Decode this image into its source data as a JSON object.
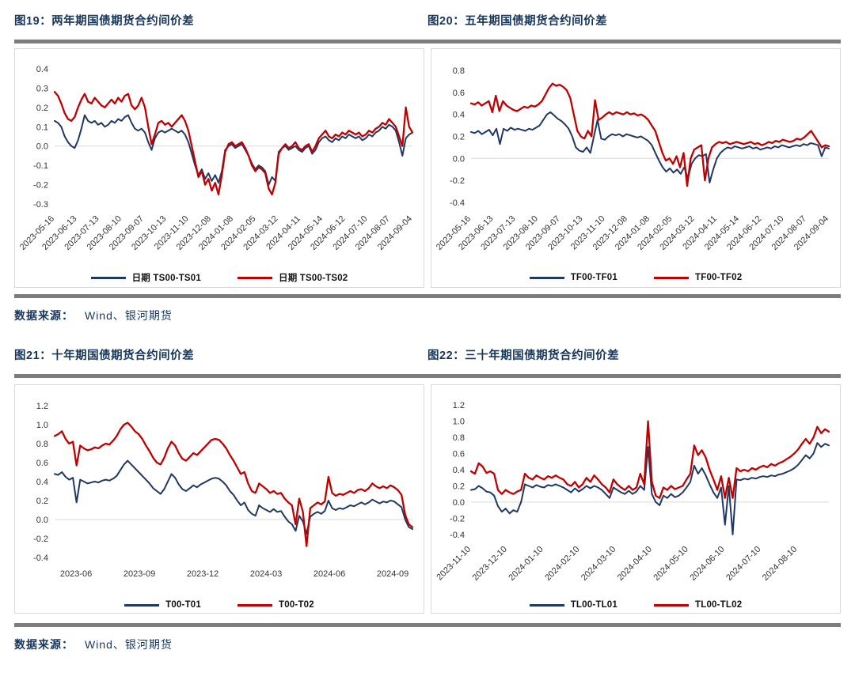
{
  "colors": {
    "navy_text": "#17365D",
    "blue_line": "#1F3864",
    "red_line": "#C00000",
    "divider_gray": "#7D7D7D",
    "box_border": "#D9D9D9",
    "zero_gridline": "#D9D9D9",
    "tick_text": "#333333"
  },
  "sections": [
    {
      "titles": [
        "图19：两年期国债期货合约间价差",
        "图20：五年期国债期货合约间价差"
      ],
      "source_label": "数据来源：",
      "source_value": "Wind、银河期货"
    },
    {
      "titles": [
        "图21：十年期国债期货合约间价差",
        "图22：三十年期国债期货合约间价差"
      ],
      "source_label": "数据来源：",
      "source_value": "Wind、银河期货"
    }
  ],
  "chart_data": [
    {
      "type": "line",
      "title": "图19：两年期国债期货合约间价差",
      "ylim": [
        -0.32,
        0.42
      ],
      "y_ticks": [
        0.4,
        0.3,
        0.2,
        0.1,
        0.0,
        -0.1,
        -0.2,
        -0.3
      ],
      "grid": "zero-line-only",
      "legend_position": "bottom",
      "x_tick_rotate": true,
      "x_start": 0,
      "x_step": 0.0625,
      "margins": {
        "l": 50,
        "r": 14,
        "t": 20,
        "b": 66
      },
      "x_tick_labels": [
        "2023-05-16",
        "2023-06-13",
        "2023-07-13",
        "2023-08-10",
        "2023-09-07",
        "2023-10-13",
        "2023-11-10",
        "2023-12-08",
        "2024-01-08",
        "2024-02-05",
        "2024-03-12",
        "2024-04-11",
        "2024-05-14",
        "2024-06-12",
        "2024-07-10",
        "2024-08-07",
        "2024-09-04"
      ],
      "series": [
        {
          "name": "日期 TS00-TS01",
          "color": "#1F3864",
          "width": 2,
          "values": [
            0.13,
            0.12,
            0.1,
            0.05,
            0.02,
            0.0,
            -0.01,
            0.03,
            0.09,
            0.16,
            0.13,
            0.12,
            0.13,
            0.11,
            0.12,
            0.1,
            0.11,
            0.13,
            0.12,
            0.14,
            0.13,
            0.15,
            0.16,
            0.12,
            0.09,
            0.08,
            0.09,
            0.07,
            0.02,
            -0.02,
            0.04,
            0.07,
            0.08,
            0.07,
            0.08,
            0.09,
            0.08,
            0.07,
            0.08,
            0.06,
            0.02,
            -0.04,
            -0.1,
            -0.15,
            -0.12,
            -0.17,
            -0.14,
            -0.18,
            -0.15,
            -0.19,
            -0.13,
            -0.02,
            0.0,
            0.01,
            -0.01,
            0.0,
            0.01,
            -0.02,
            -0.05,
            -0.09,
            -0.12,
            -0.1,
            -0.11,
            -0.13,
            -0.2,
            -0.16,
            -0.18,
            -0.03,
            -0.01,
            0.0,
            -0.02,
            -0.01,
            0.0,
            -0.02,
            -0.03,
            -0.01,
            0.0,
            -0.04,
            -0.02,
            0.02,
            0.04,
            0.05,
            0.03,
            0.02,
            0.04,
            0.03,
            0.05,
            0.04,
            0.06,
            0.05,
            0.04,
            0.05,
            0.03,
            0.04,
            0.06,
            0.05,
            0.07,
            0.08,
            0.1,
            0.09,
            0.11,
            0.1,
            0.08,
            0.02,
            -0.05,
            0.04,
            0.06,
            0.07
          ]
        },
        {
          "name": "日期 TS00-TS02",
          "color": "#C00000",
          "width": 2.3,
          "values": [
            0.28,
            0.26,
            0.22,
            0.17,
            0.14,
            0.13,
            0.15,
            0.2,
            0.24,
            0.27,
            0.23,
            0.22,
            0.25,
            0.23,
            0.21,
            0.2,
            0.22,
            0.24,
            0.22,
            0.25,
            0.23,
            0.26,
            0.27,
            0.21,
            0.19,
            0.21,
            0.25,
            0.2,
            0.1,
            0.01,
            0.06,
            0.12,
            0.13,
            0.11,
            0.12,
            0.1,
            0.12,
            0.14,
            0.16,
            0.13,
            0.08,
            0.0,
            -0.08,
            -0.16,
            -0.13,
            -0.2,
            -0.17,
            -0.23,
            -0.19,
            -0.25,
            -0.15,
            -0.03,
            0.01,
            0.02,
            0.0,
            0.01,
            0.02,
            -0.01,
            -0.05,
            -0.1,
            -0.13,
            -0.11,
            -0.12,
            -0.14,
            -0.22,
            -0.25,
            -0.19,
            -0.04,
            -0.01,
            0.01,
            -0.01,
            0.0,
            0.02,
            -0.01,
            -0.02,
            0.0,
            0.01,
            -0.03,
            0.0,
            0.04,
            0.06,
            0.08,
            0.05,
            0.04,
            0.06,
            0.05,
            0.07,
            0.06,
            0.08,
            0.07,
            0.06,
            0.07,
            0.05,
            0.06,
            0.08,
            0.07,
            0.09,
            0.1,
            0.12,
            0.11,
            0.14,
            0.12,
            0.1,
            0.05,
            0.0,
            0.2,
            0.1,
            0.07
          ]
        }
      ]
    },
    {
      "type": "line",
      "title": "图20：五年期国债期货合约间价差",
      "ylim": [
        -0.45,
        0.85
      ],
      "y_ticks": [
        0.8,
        0.6,
        0.4,
        0.2,
        0.0,
        -0.2,
        -0.4
      ],
      "grid": "zero-line-only",
      "legend_position": "bottom",
      "x_tick_rotate": true,
      "x_start": 0,
      "x_step": 0.0625,
      "margins": {
        "l": 50,
        "r": 14,
        "t": 20,
        "b": 66
      },
      "x_tick_labels": [
        "2023-05-16",
        "2023-06-13",
        "2023-07-13",
        "2023-08-10",
        "2023-09-07",
        "2023-10-13",
        "2023-11-10",
        "2023-12-08",
        "2024-01-08",
        "2024-02-05",
        "2024-03-12",
        "2024-04-11",
        "2024-05-14",
        "2024-06-12",
        "2024-07-10",
        "2024-08-07",
        "2024-09-04"
      ],
      "series": [
        {
          "name": "TF00-TF01",
          "color": "#1F3864",
          "width": 2,
          "values": [
            0.24,
            0.23,
            0.25,
            0.22,
            0.24,
            0.26,
            0.21,
            0.27,
            0.13,
            0.27,
            0.25,
            0.28,
            0.26,
            0.27,
            0.26,
            0.25,
            0.27,
            0.26,
            0.28,
            0.3,
            0.35,
            0.4,
            0.42,
            0.39,
            0.36,
            0.34,
            0.31,
            0.27,
            0.2,
            0.1,
            0.07,
            0.06,
            0.1,
            0.05,
            0.2,
            0.35,
            0.18,
            0.17,
            0.2,
            0.22,
            0.21,
            0.22,
            0.2,
            0.22,
            0.21,
            0.2,
            0.19,
            0.2,
            0.18,
            0.16,
            0.12,
            0.05,
            -0.02,
            -0.08,
            -0.12,
            -0.09,
            -0.13,
            -0.1,
            -0.14,
            -0.08,
            -0.18,
            -0.05,
            0.0,
            0.03,
            0.02,
            0.04,
            -0.22,
            -0.1,
            0.0,
            0.05,
            0.08,
            0.1,
            0.09,
            0.11,
            0.1,
            0.09,
            0.1,
            0.11,
            0.09,
            0.1,
            0.08,
            0.09,
            0.1,
            0.09,
            0.11,
            0.1,
            0.12,
            0.11,
            0.1,
            0.11,
            0.12,
            0.11,
            0.13,
            0.12,
            0.14,
            0.13,
            0.12,
            0.02,
            0.1,
            0.09
          ]
        },
        {
          "name": "TF00-TF02",
          "color": "#C00000",
          "width": 2.3,
          "values": [
            0.5,
            0.49,
            0.51,
            0.48,
            0.5,
            0.52,
            0.42,
            0.57,
            0.43,
            0.52,
            0.48,
            0.46,
            0.44,
            0.43,
            0.45,
            0.47,
            0.46,
            0.48,
            0.47,
            0.49,
            0.52,
            0.58,
            0.64,
            0.68,
            0.66,
            0.67,
            0.65,
            0.62,
            0.55,
            0.4,
            0.25,
            0.2,
            0.18,
            0.25,
            0.2,
            0.53,
            0.35,
            0.37,
            0.4,
            0.42,
            0.4,
            0.42,
            0.41,
            0.4,
            0.42,
            0.4,
            0.41,
            0.39,
            0.4,
            0.38,
            0.35,
            0.3,
            0.25,
            0.15,
            0.05,
            -0.02,
            0.0,
            -0.05,
            0.02,
            -0.08,
            0.05,
            -0.25,
            0.0,
            0.08,
            0.1,
            0.12,
            -0.2,
            0.0,
            0.1,
            0.13,
            0.15,
            0.14,
            0.15,
            0.13,
            0.14,
            0.15,
            0.14,
            0.13,
            0.14,
            0.15,
            0.13,
            0.14,
            0.12,
            0.13,
            0.15,
            0.14,
            0.16,
            0.15,
            0.17,
            0.16,
            0.15,
            0.16,
            0.18,
            0.17,
            0.19,
            0.22,
            0.25,
            0.2,
            0.15,
            0.1,
            0.12,
            0.11
          ]
        }
      ]
    },
    {
      "type": "line",
      "title": "图21：十年期国债期货合约间价差",
      "ylim": [
        -0.45,
        1.25
      ],
      "y_ticks": [
        1.2,
        1.0,
        0.8,
        0.6,
        0.4,
        0.2,
        0.0,
        -0.2,
        -0.4
      ],
      "grid": "zero-line-only",
      "legend_position": "bottom",
      "x_tick_rotate": false,
      "x_start": 0.06,
      "x_step": 0.177,
      "margins": {
        "l": 50,
        "r": 14,
        "t": 20,
        "b": 34
      },
      "x_tick_labels": [
        "2023-06",
        "2023-09",
        "2023-12",
        "2024-03",
        "2024-06",
        "2024-09"
      ],
      "series": [
        {
          "name": "T00-T01",
          "color": "#1F3864",
          "width": 2,
          "values": [
            0.48,
            0.47,
            0.5,
            0.45,
            0.42,
            0.44,
            0.18,
            0.42,
            0.4,
            0.38,
            0.39,
            0.4,
            0.39,
            0.41,
            0.42,
            0.41,
            0.43,
            0.46,
            0.52,
            0.58,
            0.62,
            0.58,
            0.54,
            0.5,
            0.46,
            0.42,
            0.38,
            0.33,
            0.3,
            0.27,
            0.32,
            0.4,
            0.48,
            0.44,
            0.37,
            0.32,
            0.3,
            0.33,
            0.36,
            0.34,
            0.37,
            0.39,
            0.41,
            0.43,
            0.44,
            0.43,
            0.4,
            0.36,
            0.3,
            0.26,
            0.2,
            0.15,
            0.18,
            0.1,
            0.06,
            0.04,
            0.15,
            0.12,
            0.1,
            0.08,
            0.11,
            0.08,
            0.09,
            0.03,
            -0.02,
            -0.05,
            -0.12,
            0.04,
            -0.02,
            -0.15,
            0.03,
            0.06,
            0.08,
            0.06,
            0.09,
            0.2,
            0.12,
            0.1,
            0.12,
            0.11,
            0.13,
            0.15,
            0.14,
            0.16,
            0.18,
            0.16,
            0.18,
            0.21,
            0.19,
            0.17,
            0.19,
            0.18,
            0.2,
            0.19,
            0.16,
            0.13,
            0.0,
            -0.08,
            -0.1
          ]
        },
        {
          "name": "T00-T02",
          "color": "#C00000",
          "width": 2.3,
          "values": [
            0.88,
            0.9,
            0.93,
            0.85,
            0.8,
            0.82,
            0.57,
            0.78,
            0.75,
            0.73,
            0.74,
            0.76,
            0.75,
            0.78,
            0.8,
            0.79,
            0.83,
            0.88,
            0.95,
            1.0,
            1.02,
            0.98,
            0.93,
            0.9,
            0.85,
            0.78,
            0.72,
            0.65,
            0.6,
            0.58,
            0.65,
            0.75,
            0.82,
            0.78,
            0.7,
            0.64,
            0.62,
            0.66,
            0.7,
            0.68,
            0.72,
            0.76,
            0.8,
            0.84,
            0.85,
            0.84,
            0.8,
            0.75,
            0.68,
            0.62,
            0.55,
            0.48,
            0.5,
            0.38,
            0.3,
            0.28,
            0.38,
            0.35,
            0.32,
            0.28,
            0.3,
            0.27,
            0.28,
            0.22,
            0.18,
            0.15,
            -0.05,
            0.22,
            0.08,
            -0.28,
            0.12,
            0.15,
            0.18,
            0.16,
            0.19,
            0.45,
            0.28,
            0.25,
            0.27,
            0.26,
            0.28,
            0.3,
            0.28,
            0.31,
            0.32,
            0.3,
            0.33,
            0.38,
            0.35,
            0.33,
            0.35,
            0.33,
            0.36,
            0.34,
            0.31,
            0.26,
            0.05,
            -0.05,
            -0.08
          ]
        }
      ]
    },
    {
      "type": "line",
      "title": "图22：三十年期国债期货合约间价差",
      "ylim": [
        -0.45,
        1.25
      ],
      "y_ticks": [
        1.2,
        1.0,
        0.8,
        0.6,
        0.4,
        0.2,
        0.0,
        -0.2,
        -0.4
      ],
      "grid": "zero-line-only",
      "legend_position": "bottom",
      "x_tick_rotate": true,
      "x_start": 0,
      "x_step": 0.1013,
      "margins": {
        "l": 50,
        "r": 14,
        "t": 20,
        "b": 64
      },
      "x_tick_labels": [
        "2023-11-10",
        "2023-12-10",
        "2024-01-10",
        "2024-02-10",
        "2024-03-10",
        "2024-04-10",
        "2024-05-10",
        "2024-06-10",
        "2024-07-10",
        "2024-08-10"
      ],
      "series": [
        {
          "name": "TL00-TL01",
          "color": "#1F3864",
          "width": 2,
          "values": [
            0.15,
            0.16,
            0.2,
            0.17,
            0.13,
            0.12,
            0.08,
            -0.05,
            -0.12,
            -0.08,
            -0.14,
            -0.1,
            -0.12,
            0.0,
            0.22,
            0.2,
            0.18,
            0.21,
            0.19,
            0.18,
            0.21,
            0.2,
            0.22,
            0.2,
            0.18,
            0.15,
            0.12,
            0.17,
            0.13,
            0.16,
            0.2,
            0.17,
            0.2,
            0.18,
            0.15,
            0.1,
            0.05,
            0.18,
            0.15,
            0.12,
            0.1,
            0.14,
            0.1,
            0.13,
            0.2,
            0.15,
            0.68,
            0.1,
            0.0,
            -0.04,
            0.08,
            0.05,
            0.1,
            0.06,
            0.08,
            0.12,
            0.18,
            0.25,
            0.45,
            0.35,
            0.42,
            0.33,
            0.22,
            0.12,
            0.05,
            0.18,
            -0.28,
            0.2,
            -0.4,
            0.28,
            0.27,
            0.29,
            0.28,
            0.3,
            0.29,
            0.31,
            0.32,
            0.31,
            0.33,
            0.32,
            0.34,
            0.35,
            0.37,
            0.39,
            0.42,
            0.46,
            0.52,
            0.58,
            0.54,
            0.6,
            0.73,
            0.68,
            0.72,
            0.7
          ]
        },
        {
          "name": "TL00-TL02",
          "color": "#C00000",
          "width": 2.3,
          "values": [
            0.38,
            0.35,
            0.48,
            0.44,
            0.36,
            0.38,
            0.35,
            0.15,
            0.1,
            0.15,
            0.12,
            0.1,
            0.13,
            0.15,
            0.35,
            0.3,
            0.28,
            0.33,
            0.3,
            0.28,
            0.32,
            0.3,
            0.33,
            0.3,
            0.28,
            0.22,
            0.2,
            0.25,
            0.18,
            0.22,
            0.3,
            0.25,
            0.33,
            0.28,
            0.22,
            0.18,
            0.12,
            0.28,
            0.22,
            0.18,
            0.15,
            0.2,
            0.15,
            0.18,
            0.35,
            0.22,
            1.0,
            0.25,
            0.08,
            0.05,
            0.18,
            0.15,
            0.2,
            0.16,
            0.18,
            0.2,
            0.28,
            0.35,
            0.7,
            0.58,
            0.64,
            0.55,
            0.4,
            0.28,
            0.15,
            0.32,
            0.05,
            0.3,
            0.05,
            0.42,
            0.38,
            0.4,
            0.38,
            0.42,
            0.4,
            0.43,
            0.45,
            0.43,
            0.47,
            0.45,
            0.48,
            0.5,
            0.53,
            0.56,
            0.6,
            0.65,
            0.72,
            0.78,
            0.72,
            0.8,
            0.93,
            0.85,
            0.9,
            0.87
          ]
        }
      ]
    }
  ]
}
